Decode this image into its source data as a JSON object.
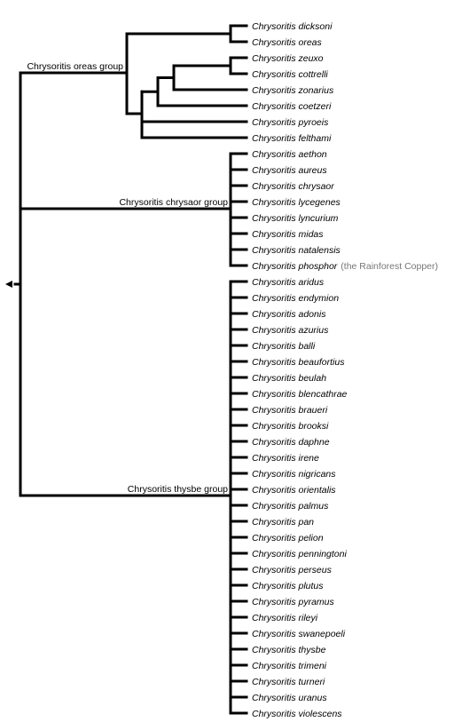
{
  "tree": {
    "groups": [
      {
        "label": "Chrysoritis oreas group",
        "species": [
          {
            "name": "Chrysoritis dicksoni"
          },
          {
            "name": "Chrysoritis oreas"
          },
          {
            "name": "Chrysoritis zeuxo"
          },
          {
            "name": "Chrysoritis cottrelli"
          },
          {
            "name": "Chrysoritis zonarius"
          },
          {
            "name": "Chrysoritis coetzeri"
          },
          {
            "name": "Chrysoritis pyroeis"
          },
          {
            "name": "Chrysoritis felthami"
          }
        ]
      },
      {
        "label": "Chrysoritis chrysaor group",
        "species": [
          {
            "name": "Chrysoritis aethon"
          },
          {
            "name": "Chrysoritis aureus"
          },
          {
            "name": "Chrysoritis chrysaor"
          },
          {
            "name": "Chrysoritis lycegenes"
          },
          {
            "name": "Chrysoritis lyncurium"
          },
          {
            "name": "Chrysoritis midas"
          },
          {
            "name": "Chrysoritis natalensis"
          },
          {
            "name": "Chrysoritis phosphor",
            "common": "(the Rainforest Copper)"
          }
        ]
      },
      {
        "label": "Chrysoritis thysbe group",
        "species": [
          {
            "name": "Chrysoritis aridus"
          },
          {
            "name": "Chrysoritis endymion"
          },
          {
            "name": "Chrysoritis adonis"
          },
          {
            "name": "Chrysoritis azurius"
          },
          {
            "name": "Chrysoritis balli"
          },
          {
            "name": "Chrysoritis beaufortius"
          },
          {
            "name": "Chrysoritis beulah"
          },
          {
            "name": "Chrysoritis blencathrae"
          },
          {
            "name": "Chrysoritis braueri"
          },
          {
            "name": "Chrysoritis brooksi"
          },
          {
            "name": "Chrysoritis daphne"
          },
          {
            "name": "Chrysoritis irene"
          },
          {
            "name": "Chrysoritis nigricans"
          },
          {
            "name": "Chrysoritis orientalis"
          },
          {
            "name": "Chrysoritis palmus"
          },
          {
            "name": "Chrysoritis pan"
          },
          {
            "name": "Chrysoritis pelion"
          },
          {
            "name": "Chrysoritis penningtoni"
          },
          {
            "name": "Chrysoritis perseus"
          },
          {
            "name": "Chrysoritis plutus"
          },
          {
            "name": "Chrysoritis pyramus"
          },
          {
            "name": "Chrysoritis rileyi"
          },
          {
            "name": "Chrysoritis swanepoeli"
          },
          {
            "name": "Chrysoritis thysbe"
          },
          {
            "name": "Chrysoritis trimeni"
          },
          {
            "name": "Chrysoritis turneri"
          },
          {
            "name": "Chrysoritis uranus"
          },
          {
            "name": "Chrysoritis violescens"
          }
        ]
      }
    ],
    "colors": {
      "branch": "#000000",
      "common_name": "#777777"
    }
  }
}
